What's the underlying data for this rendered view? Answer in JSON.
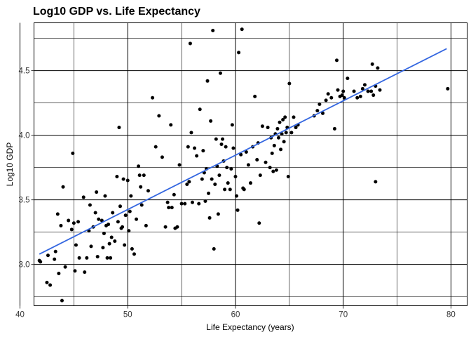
{
  "chart_data": {
    "type": "scatter",
    "title": "Log10 GDP vs. Life Expectancy",
    "xlabel": "Life Expectancy (years)",
    "ylabel": "Log10 GDP",
    "xlim": [
      41.3,
      81.5
    ],
    "ylim": [
      2.68,
      4.87
    ],
    "x_major_ticks": [
      40,
      50,
      60,
      70,
      80
    ],
    "x_minor_ticks": [
      45,
      55,
      65,
      75
    ],
    "y_major_ticks": [
      3.0,
      3.5,
      4.0,
      4.5
    ],
    "y_minor_ticks": [
      2.75,
      3.25,
      3.75,
      4.25,
      4.75
    ],
    "x_tick_labels": [
      "40",
      "50",
      "60",
      "70",
      "80"
    ],
    "y_tick_labels": [
      "3.0",
      "3.5",
      "4.0",
      "4.5"
    ],
    "grid": true,
    "point_color": "#000000",
    "trend_color": "#3366e0",
    "trend": {
      "x": [
        41.8,
        79.6
      ],
      "y": [
        3.08,
        4.67
      ]
    },
    "points": [
      [
        41.8,
        3.03
      ],
      [
        41.9,
        3.02
      ],
      [
        42.5,
        2.86
      ],
      [
        42.6,
        3.07
      ],
      [
        42.8,
        2.84
      ],
      [
        43.2,
        3.04
      ],
      [
        43.3,
        3.1
      ],
      [
        43.5,
        3.39
      ],
      [
        43.6,
        2.93
      ],
      [
        43.8,
        3.3
      ],
      [
        43.9,
        2.72
      ],
      [
        44.0,
        3.6
      ],
      [
        44.2,
        2.98
      ],
      [
        44.5,
        3.34
      ],
      [
        44.8,
        3.27
      ],
      [
        44.9,
        3.86
      ],
      [
        45.0,
        3.32
      ],
      [
        45.1,
        2.95
      ],
      [
        45.2,
        3.15
      ],
      [
        45.4,
        3.33
      ],
      [
        45.5,
        3.05
      ],
      [
        45.9,
        3.52
      ],
      [
        46.0,
        2.94
      ],
      [
        46.2,
        3.05
      ],
      [
        46.4,
        3.26
      ],
      [
        46.5,
        3.46
      ],
      [
        46.6,
        3.14
      ],
      [
        46.8,
        3.29
      ],
      [
        47.0,
        3.4
      ],
      [
        47.1,
        3.56
      ],
      [
        47.2,
        3.06
      ],
      [
        47.3,
        3.35
      ],
      [
        47.6,
        3.34
      ],
      [
        47.7,
        3.13
      ],
      [
        47.8,
        3.24
      ],
      [
        47.9,
        3.53
      ],
      [
        48.0,
        3.3
      ],
      [
        48.1,
        3.05
      ],
      [
        48.2,
        3.31
      ],
      [
        48.3,
        3.16
      ],
      [
        48.4,
        3.05
      ],
      [
        48.5,
        3.21
      ],
      [
        48.6,
        3.4
      ],
      [
        48.8,
        3.18
      ],
      [
        49.0,
        3.68
      ],
      [
        49.1,
        3.33
      ],
      [
        49.2,
        4.06
      ],
      [
        49.3,
        3.45
      ],
      [
        49.4,
        3.28
      ],
      [
        49.5,
        3.29
      ],
      [
        49.6,
        3.66
      ],
      [
        49.7,
        3.15
      ],
      [
        49.8,
        3.38
      ],
      [
        50.0,
        3.65
      ],
      [
        50.1,
        3.26
      ],
      [
        50.2,
        3.41
      ],
      [
        50.3,
        3.53
      ],
      [
        50.4,
        3.12
      ],
      [
        50.6,
        3.08
      ],
      [
        50.8,
        3.35
      ],
      [
        51.0,
        3.76
      ],
      [
        51.1,
        3.69
      ],
      [
        51.2,
        3.6
      ],
      [
        51.3,
        3.46
      ],
      [
        51.5,
        3.69
      ],
      [
        51.7,
        3.3
      ],
      [
        51.9,
        3.57
      ],
      [
        52.3,
        4.29
      ],
      [
        52.6,
        3.91
      ],
      [
        52.9,
        4.15
      ],
      [
        53.2,
        3.83
      ],
      [
        53.5,
        3.29
      ],
      [
        53.7,
        3.48
      ],
      [
        53.8,
        3.44
      ],
      [
        54.0,
        4.08
      ],
      [
        54.1,
        3.44
      ],
      [
        54.3,
        3.54
      ],
      [
        54.4,
        3.28
      ],
      [
        54.6,
        3.29
      ],
      [
        54.8,
        3.77
      ],
      [
        55.0,
        3.47
      ],
      [
        55.3,
        3.47
      ],
      [
        55.5,
        3.62
      ],
      [
        55.6,
        3.91
      ],
      [
        55.7,
        3.64
      ],
      [
        55.8,
        4.71
      ],
      [
        55.9,
        4.02
      ],
      [
        56.0,
        3.48
      ],
      [
        56.2,
        3.9
      ],
      [
        56.4,
        3.84
      ],
      [
        56.6,
        3.47
      ],
      [
        56.7,
        4.2
      ],
      [
        56.9,
        3.66
      ],
      [
        57.0,
        3.88
      ],
      [
        57.1,
        3.71
      ],
      [
        57.2,
        3.49
      ],
      [
        57.3,
        3.74
      ],
      [
        57.4,
        4.42
      ],
      [
        57.5,
        3.55
      ],
      [
        57.6,
        3.36
      ],
      [
        57.7,
        4.11
      ],
      [
        57.8,
        3.66
      ],
      [
        57.9,
        4.81
      ],
      [
        58.0,
        3.12
      ],
      [
        58.1,
        3.62
      ],
      [
        58.2,
        3.97
      ],
      [
        58.3,
        3.76
      ],
      [
        58.4,
        3.39
      ],
      [
        58.5,
        3.69
      ],
      [
        58.6,
        4.48
      ],
      [
        58.7,
        3.93
      ],
      [
        58.8,
        3.97
      ],
      [
        58.9,
        3.8
      ],
      [
        59.0,
        3.58
      ],
      [
        59.1,
        3.91
      ],
      [
        59.2,
        3.75
      ],
      [
        59.3,
        3.63
      ],
      [
        59.5,
        3.58
      ],
      [
        59.6,
        3.74
      ],
      [
        59.7,
        4.08
      ],
      [
        59.8,
        3.9
      ],
      [
        60.0,
        3.68
      ],
      [
        60.1,
        3.53
      ],
      [
        60.2,
        3.42
      ],
      [
        60.3,
        4.64
      ],
      [
        60.5,
        3.85
      ],
      [
        60.6,
        4.82
      ],
      [
        60.7,
        3.59
      ],
      [
        60.8,
        3.58
      ],
      [
        61.0,
        3.87
      ],
      [
        61.2,
        3.77
      ],
      [
        61.4,
        3.63
      ],
      [
        61.6,
        3.91
      ],
      [
        61.8,
        4.3
      ],
      [
        62.0,
        3.81
      ],
      [
        62.1,
        3.94
      ],
      [
        62.2,
        3.32
      ],
      [
        62.3,
        3.69
      ],
      [
        62.5,
        4.07
      ],
      [
        62.8,
        3.79
      ],
      [
        63.0,
        4.06
      ],
      [
        63.2,
        3.75
      ],
      [
        63.3,
        3.98
      ],
      [
        63.4,
        3.86
      ],
      [
        63.5,
        3.72
      ],
      [
        63.6,
        3.92
      ],
      [
        63.7,
        4.01
      ],
      [
        63.8,
        3.73
      ],
      [
        63.9,
        4.05
      ],
      [
        64.0,
        3.98
      ],
      [
        64.1,
        4.1
      ],
      [
        64.2,
        3.89
      ],
      [
        64.3,
        4.01
      ],
      [
        64.4,
        4.12
      ],
      [
        64.5,
        3.95
      ],
      [
        64.6,
        4.14
      ],
      [
        64.7,
        4.02
      ],
      [
        64.8,
        4.06
      ],
      [
        64.9,
        3.68
      ],
      [
        65.0,
        4.4
      ],
      [
        65.2,
        4.02
      ],
      [
        65.4,
        4.14
      ],
      [
        65.6,
        4.06
      ],
      [
        65.8,
        4.08
      ],
      [
        67.3,
        4.15
      ],
      [
        67.6,
        4.19
      ],
      [
        67.8,
        4.24
      ],
      [
        68.1,
        4.17
      ],
      [
        68.4,
        4.27
      ],
      [
        68.6,
        4.32
      ],
      [
        68.9,
        4.29
      ],
      [
        69.2,
        4.05
      ],
      [
        69.4,
        4.58
      ],
      [
        69.5,
        4.35
      ],
      [
        69.7,
        4.3
      ],
      [
        69.9,
        4.31
      ],
      [
        70.0,
        4.34
      ],
      [
        70.1,
        4.29
      ],
      [
        70.4,
        4.44
      ],
      [
        71.0,
        4.34
      ],
      [
        71.3,
        4.29
      ],
      [
        71.6,
        4.3
      ],
      [
        71.8,
        4.36
      ],
      [
        72.0,
        4.39
      ],
      [
        72.3,
        4.34
      ],
      [
        72.6,
        4.34
      ],
      [
        72.7,
        4.55
      ],
      [
        72.8,
        4.31
      ],
      [
        73.0,
        4.38
      ],
      [
        73.0,
        3.64
      ],
      [
        73.2,
        4.52
      ],
      [
        73.4,
        4.35
      ],
      [
        79.7,
        4.36
      ]
    ]
  }
}
